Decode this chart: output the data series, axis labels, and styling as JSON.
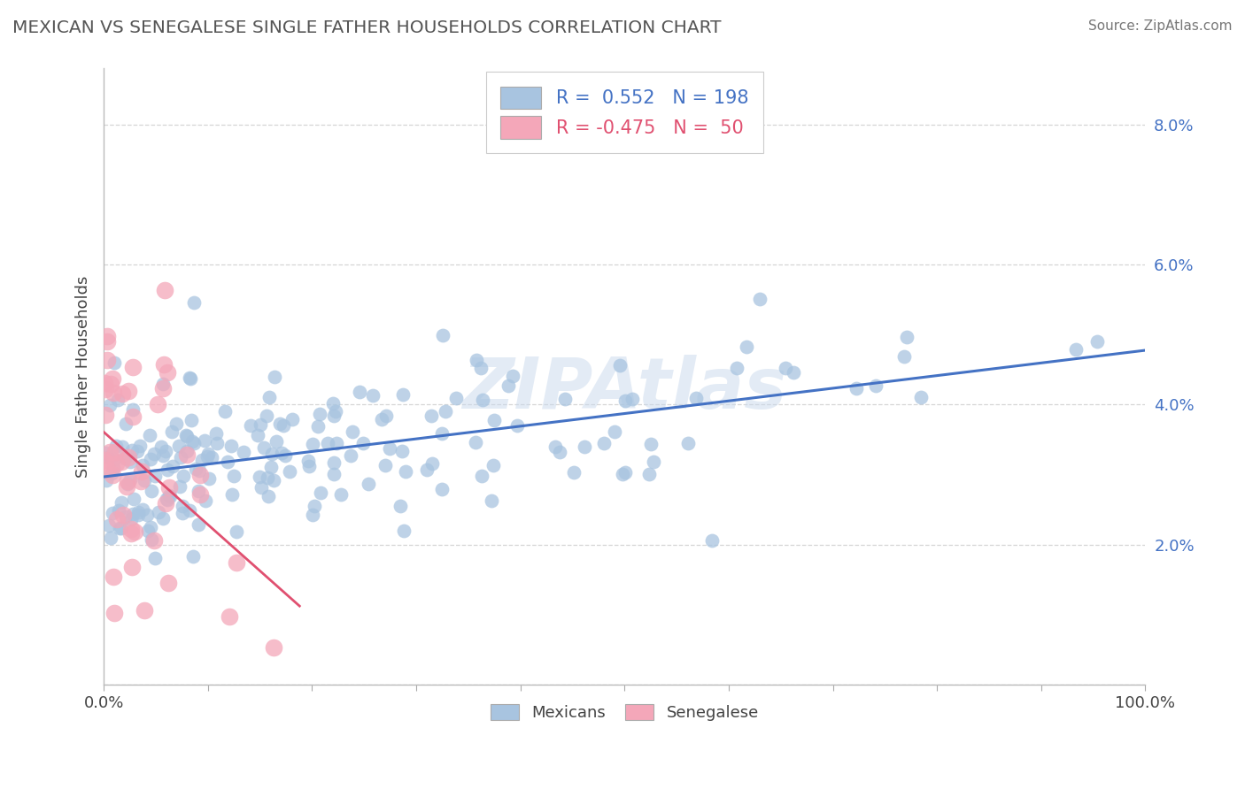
{
  "title": "MEXICAN VS SENEGALESE SINGLE FATHER HOUSEHOLDS CORRELATION CHART",
  "source": "Source: ZipAtlas.com",
  "ylabel": "Single Father Households",
  "xlim": [
    0,
    100
  ],
  "ylim": [
    0,
    8.8
  ],
  "blue_R": 0.552,
  "blue_N": 198,
  "pink_R": -0.475,
  "pink_N": 50,
  "blue_color": "#a8c4e0",
  "blue_line_color": "#4472c4",
  "pink_color": "#f4a7b9",
  "pink_line_color": "#e05070",
  "legend_label_blue": "Mexicans",
  "legend_label_pink": "Senegalese",
  "watermark": "ZIPAtlas",
  "background_color": "#ffffff",
  "grid_color": "#cccccc",
  "title_color": "#555555",
  "axis_label_color": "#4472c4",
  "seed_blue": 42,
  "seed_pink": 99,
  "blue_x_scale": 22,
  "blue_y_center": 3.3,
  "blue_y_std": 0.75,
  "pink_x_scale": 3.5,
  "pink_y_center": 3.2,
  "pink_y_std": 1.1
}
